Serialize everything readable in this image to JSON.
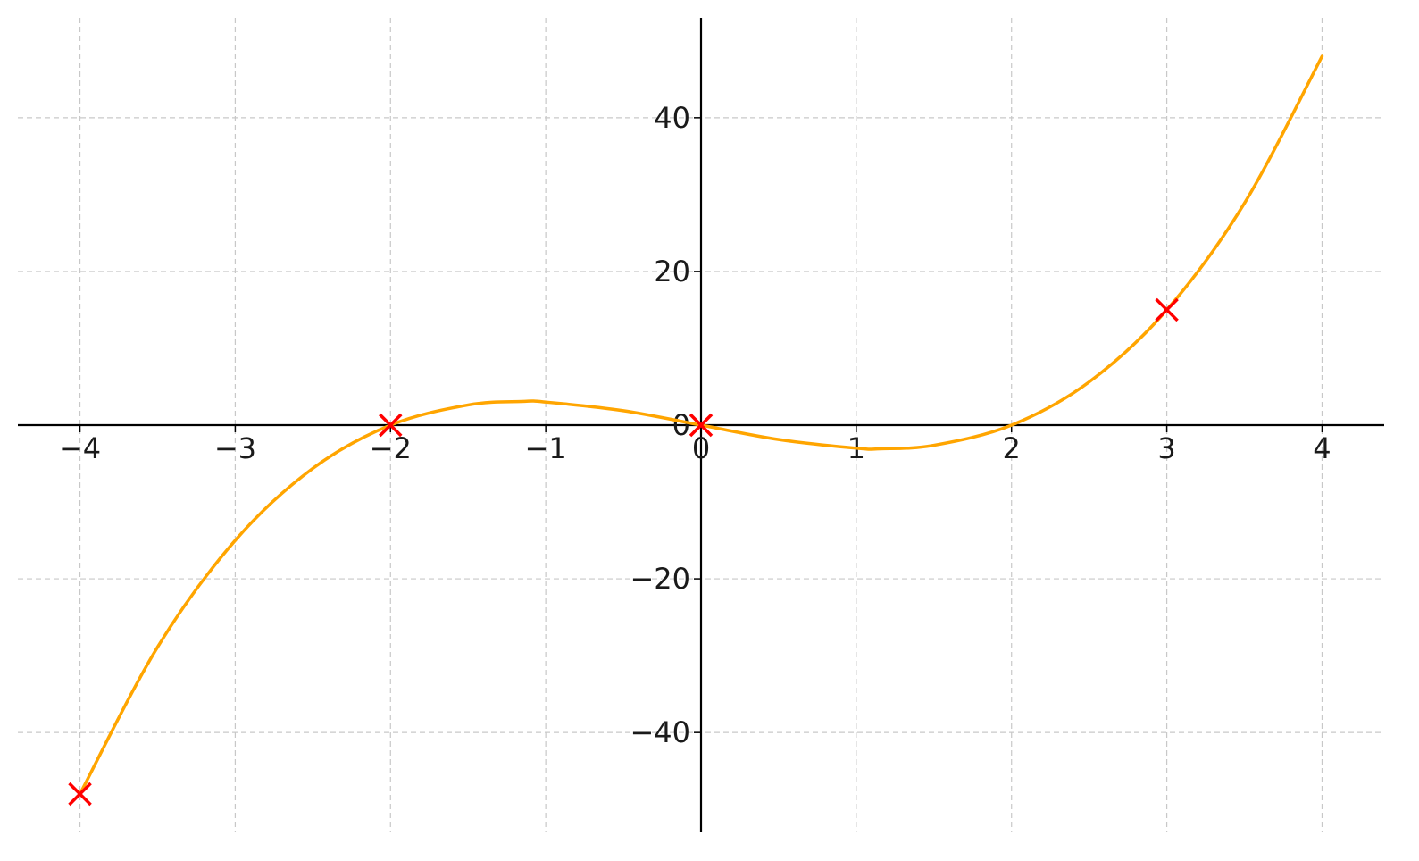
{
  "chart_data": {
    "type": "line",
    "title": "",
    "xlabel": "",
    "ylabel": "",
    "xlim": [
      -4.4,
      4.4
    ],
    "ylim": [
      -53,
      53
    ],
    "grid": true,
    "axes": "centered at origin",
    "x_ticks": [
      -4,
      -3,
      -2,
      -1,
      0,
      1,
      2,
      3,
      4
    ],
    "x_tick_labels": [
      "−4",
      "−3",
      "−2",
      "−1",
      "0",
      "1",
      "2",
      "3",
      "4"
    ],
    "y_ticks": [
      -40,
      -20,
      0,
      20,
      40
    ],
    "y_tick_labels": [
      "−40",
      "−20",
      "0",
      "20",
      "40"
    ],
    "series": [
      {
        "kind": "curve",
        "color": "#FFA500",
        "x": [
          -4,
          -3.5,
          -3,
          -2.5,
          -2,
          -1.5,
          -1.1547,
          -1,
          -0.5,
          0,
          0.5,
          1,
          1.1547,
          1.5,
          2,
          2.5,
          3,
          3.5,
          4
        ],
        "y": [
          -48,
          -28.875,
          -15,
          -5.625,
          0,
          2.625,
          3.079,
          3,
          1.875,
          0,
          -1.875,
          -3,
          -3.079,
          -2.625,
          0,
          5.625,
          15,
          28.875,
          48
        ]
      },
      {
        "kind": "markers",
        "marker": "x",
        "color": "#FF0000",
        "x": [
          -4,
          -2,
          0,
          3
        ],
        "y": [
          -48,
          0,
          0,
          15
        ]
      }
    ]
  }
}
